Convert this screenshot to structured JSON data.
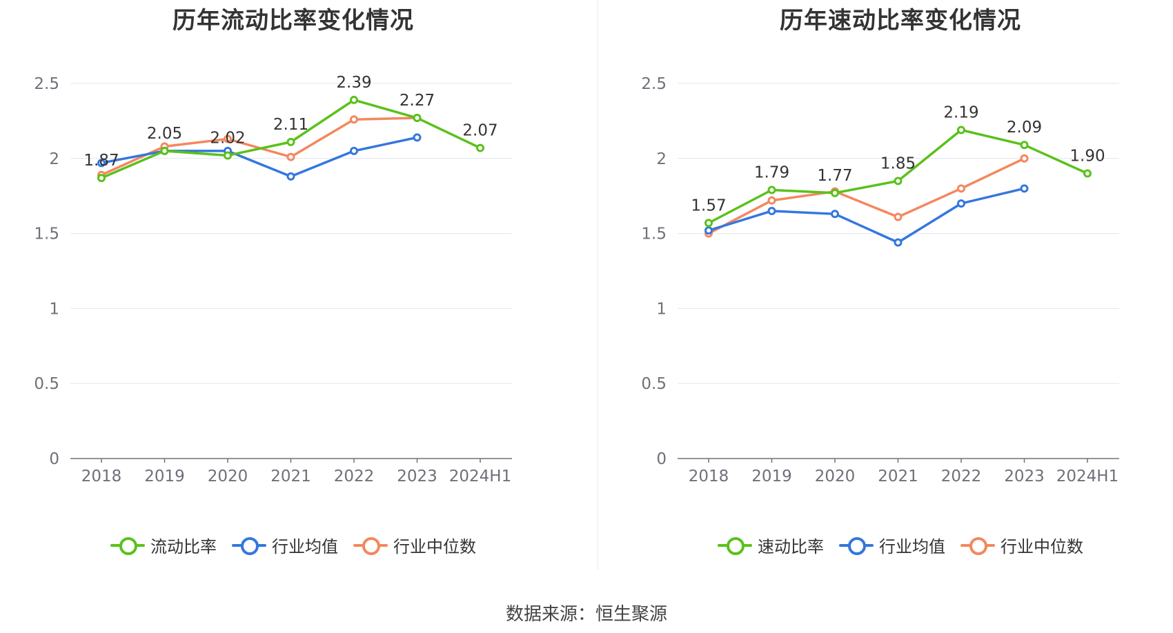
{
  "source_text": "数据来源：恒生聚源",
  "colors": {
    "main": "#5ac11a",
    "avg": "#3477de",
    "median": "#f4875e"
  },
  "chart_data": [
    {
      "type": "line",
      "title": "历年流动比率变化情况",
      "categories": [
        "2018",
        "2019",
        "2020",
        "2021",
        "2022",
        "2023",
        "2024H1"
      ],
      "ylim": [
        0,
        2.5
      ],
      "yticks": [
        "0",
        "0.5",
        "1",
        "1.5",
        "2",
        "2.5"
      ],
      "grid": true,
      "legend_position": "bottom",
      "series": [
        {
          "name": "流动比率",
          "values": [
            1.87,
            2.05,
            2.02,
            2.11,
            2.39,
            2.27,
            2.07
          ],
          "labels": [
            "1.87",
            "2.05",
            "2.02",
            "2.11",
            "2.39",
            "2.27",
            "2.07"
          ]
        },
        {
          "name": "行业均值",
          "values": [
            1.97,
            2.05,
            2.05,
            1.88,
            2.05,
            2.14,
            null
          ]
        },
        {
          "name": "行业中位数",
          "values": [
            1.89,
            2.08,
            2.13,
            2.01,
            2.26,
            2.27,
            null
          ]
        }
      ]
    },
    {
      "type": "line",
      "title": "历年速动比率变化情况",
      "categories": [
        "2018",
        "2019",
        "2020",
        "2021",
        "2022",
        "2023",
        "2024H1"
      ],
      "ylim": [
        0,
        2.5
      ],
      "yticks": [
        "0",
        "0.5",
        "1",
        "1.5",
        "2",
        "2.5"
      ],
      "grid": true,
      "legend_position": "bottom",
      "series": [
        {
          "name": "速动比率",
          "values": [
            1.57,
            1.79,
            1.77,
            1.85,
            2.19,
            2.09,
            1.9
          ],
          "labels": [
            "1.57",
            "1.79",
            "1.77",
            "1.85",
            "2.19",
            "2.09",
            "1.90"
          ]
        },
        {
          "name": "行业均值",
          "values": [
            1.52,
            1.65,
            1.63,
            1.44,
            1.7,
            1.8,
            null
          ]
        },
        {
          "name": "行业中位数",
          "values": [
            1.5,
            1.72,
            1.78,
            1.61,
            1.8,
            2.0,
            null
          ]
        }
      ]
    }
  ]
}
